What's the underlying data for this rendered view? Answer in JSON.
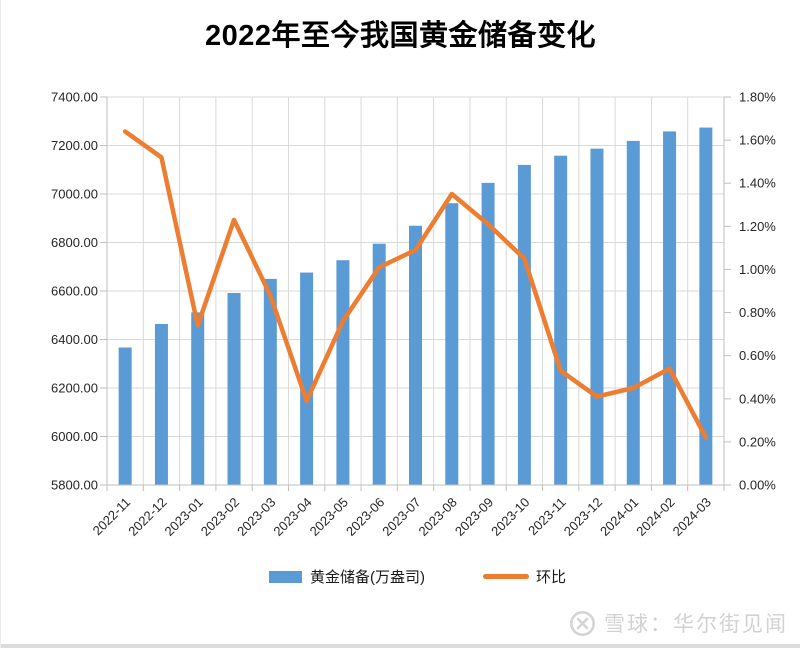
{
  "title": "2022年至今我国黄金储备变化",
  "legend": {
    "items": [
      {
        "label": "黄金储备(万盎司)",
        "marker": "bar-swatch",
        "color": "#5B9BD5"
      },
      {
        "label": "环比",
        "marker": "line-swatch",
        "color": "#ED7D31"
      }
    ]
  },
  "watermark": {
    "brand_text": "雪球：华尔街见闻",
    "logo_icon": "xueqiu-circle-logo"
  },
  "colors": {
    "bar": "#5B9BD5",
    "line": "#ED7D31",
    "grid": "#D9D9D9",
    "axis": "#BFBFBF",
    "tick_text": "#262626"
  },
  "chart_data": {
    "type": "combo",
    "title": "2022年至今我国黄金储备变化",
    "categories": [
      "2022-11",
      "2022-12",
      "2023-01",
      "2023-02",
      "2023-03",
      "2023-04",
      "2023-05",
      "2023-06",
      "2023-07",
      "2023-08",
      "2023-09",
      "2023-10",
      "2023-11",
      "2023-12",
      "2024-01",
      "2024-02",
      "2024-03"
    ],
    "series": [
      {
        "name": "黄金储备(万盎司)",
        "type": "bar",
        "axis": "left",
        "color": "#5B9BD5",
        "values": [
          6367,
          6464,
          6512,
          6592,
          6650,
          6676,
          6727,
          6795,
          6869,
          6962,
          7046,
          7120,
          7158,
          7187,
          7219,
          7258,
          7274
        ]
      },
      {
        "name": "环比",
        "type": "line",
        "axis": "right",
        "color": "#ED7D31",
        "unit": "%",
        "values": [
          1.64,
          1.52,
          0.74,
          1.23,
          0.88,
          0.39,
          0.76,
          1.01,
          1.09,
          1.35,
          1.21,
          1.05,
          0.53,
          0.41,
          0.45,
          0.54,
          0.22
        ]
      }
    ],
    "left_axis": {
      "min": 5800,
      "max": 7400,
      "step": 200,
      "tick_labels": [
        "7400.00",
        "7200.00",
        "7000.00",
        "6800.00",
        "6600.00",
        "6400.00",
        "6200.00",
        "6000.00",
        "5800.00"
      ]
    },
    "right_axis": {
      "min": 0.0,
      "max": 1.8,
      "step": 0.2,
      "tick_labels": [
        "1.80%",
        "1.60%",
        "1.40%",
        "1.20%",
        "1.00%",
        "0.80%",
        "0.60%",
        "0.40%",
        "0.20%",
        "0.00%"
      ]
    },
    "grid": {
      "horizontal": true,
      "vertical": true
    },
    "legend_position": "bottom",
    "x_label_rotation_deg": -45
  }
}
